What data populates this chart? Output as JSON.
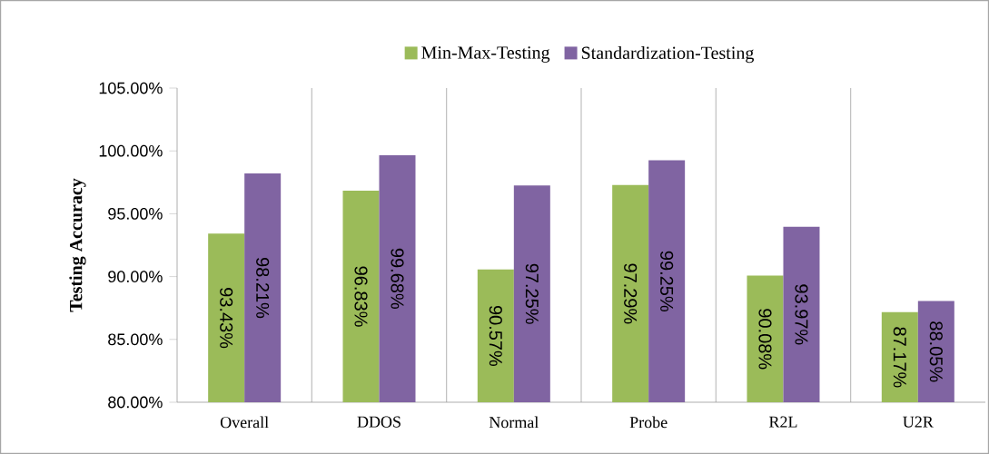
{
  "chart_data": {
    "type": "bar",
    "ylabel": "Testing Accuracy",
    "categories": [
      "Overall",
      "DDOS",
      "Normal",
      "Probe",
      "R2L",
      "U2R"
    ],
    "series": [
      {
        "name": "Min-Max-Testing",
        "color": "#9bbb59",
        "values": [
          93.43,
          96.83,
          90.57,
          97.29,
          90.08,
          87.17
        ],
        "value_labels": [
          "93.43%",
          "96.83%",
          "90.57%",
          "97.29%",
          "90.08%",
          "87.17%"
        ]
      },
      {
        "name": "Standardization-Testing",
        "color": "#8064a2",
        "values": [
          98.21,
          99.68,
          97.25,
          99.25,
          93.97,
          88.05
        ],
        "value_labels": [
          "98.21%",
          "99.68%",
          "97.25%",
          "99.25%",
          "93.97%",
          "88.05%"
        ]
      }
    ],
    "ylim": [
      80,
      105
    ],
    "yticks": [
      {
        "value": 80,
        "label": "80.00%"
      },
      {
        "value": 85,
        "label": "85.00%"
      },
      {
        "value": 90,
        "label": "90.00%"
      },
      {
        "value": 95,
        "label": "95.00%"
      },
      {
        "value": 100,
        "label": "100.00%"
      },
      {
        "value": 105,
        "label": "105.00%"
      }
    ],
    "grid": "x",
    "legend": "top"
  }
}
